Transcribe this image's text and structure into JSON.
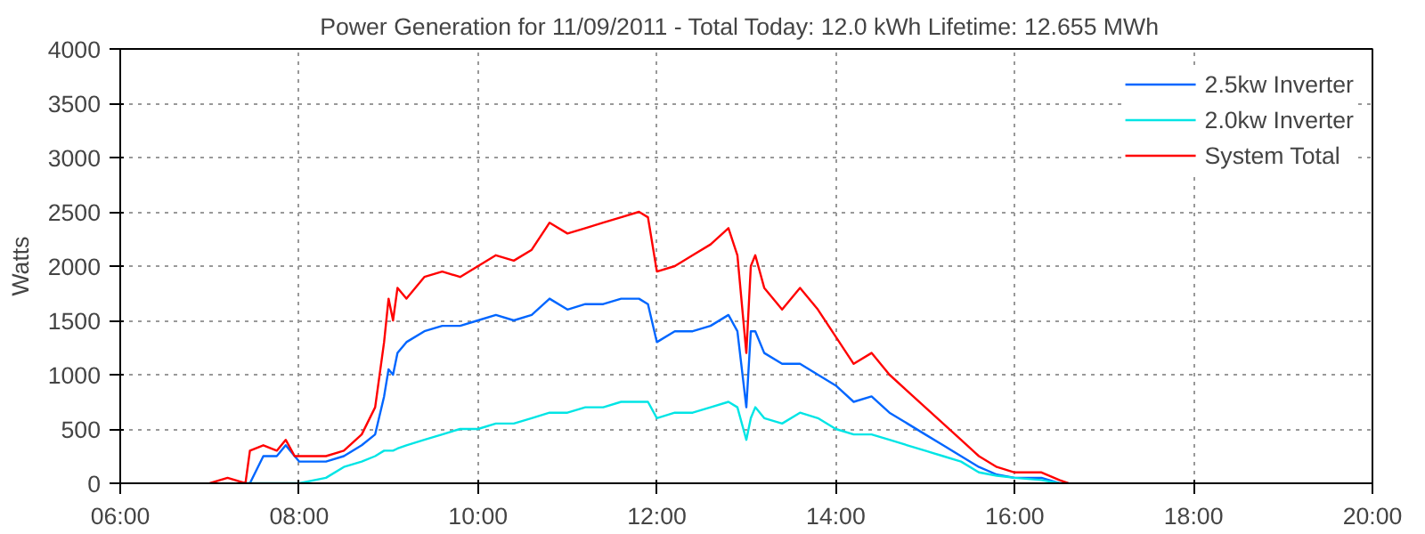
{
  "chart_data": {
    "type": "line",
    "title": "Power Generation for 11/09/2011 - Total Today: 12.0 kWh   Lifetime: 12.655 MWh",
    "ylabel": "Watts",
    "x": [
      7.0,
      7.2,
      7.4,
      7.45,
      7.6,
      7.75,
      7.85,
      7.95,
      8.0,
      8.3,
      8.5,
      8.7,
      8.85,
      8.95,
      9.0,
      9.05,
      9.1,
      9.2,
      9.4,
      9.6,
      9.8,
      10.0,
      10.2,
      10.4,
      10.6,
      10.8,
      11.0,
      11.2,
      11.4,
      11.6,
      11.8,
      11.9,
      12.0,
      12.2,
      12.4,
      12.6,
      12.8,
      12.9,
      13.0,
      13.05,
      13.1,
      13.2,
      13.4,
      13.6,
      13.8,
      14.0,
      14.2,
      14.4,
      14.6,
      14.8,
      15.0,
      15.2,
      15.4,
      15.6,
      15.8,
      16.0,
      16.3,
      16.5,
      16.6
    ],
    "series": [
      {
        "name": "2.5kw Inverter",
        "color": "#0066ff",
        "values": [
          null,
          null,
          0,
          0,
          250,
          250,
          350,
          250,
          200,
          200,
          250,
          350,
          450,
          800,
          1050,
          1000,
          1200,
          1300,
          1400,
          1450,
          1450,
          1500,
          1550,
          1500,
          1550,
          1700,
          1600,
          1650,
          1650,
          1700,
          1700,
          1650,
          1300,
          1400,
          1400,
          1450,
          1550,
          1400,
          700,
          1400,
          1400,
          1200,
          1100,
          1100,
          1000,
          900,
          750,
          800,
          650,
          550,
          450,
          350,
          250,
          150,
          80,
          50,
          50,
          0,
          0
        ]
      },
      {
        "name": "2.0kw Inverter",
        "color": "#00e5e5",
        "values": [
          null,
          null,
          0,
          0,
          0,
          0,
          0,
          0,
          0,
          50,
          150,
          200,
          250,
          300,
          300,
          300,
          320,
          350,
          400,
          450,
          500,
          500,
          550,
          550,
          600,
          650,
          650,
          700,
          700,
          750,
          750,
          750,
          600,
          650,
          650,
          700,
          750,
          700,
          400,
          600,
          700,
          600,
          550,
          650,
          600,
          500,
          450,
          450,
          400,
          350,
          300,
          250,
          200,
          100,
          70,
          50,
          30,
          0,
          0
        ]
      },
      {
        "name": "System Total",
        "color": "#ff0000",
        "values": [
          0,
          50,
          0,
          300,
          350,
          300,
          400,
          250,
          250,
          250,
          300,
          450,
          700,
          1300,
          1700,
          1500,
          1800,
          1700,
          1900,
          1950,
          1900,
          2000,
          2100,
          2050,
          2150,
          2400,
          2300,
          2350,
          2400,
          2450,
          2500,
          2450,
          1950,
          2000,
          2100,
          2200,
          2350,
          2100,
          1200,
          2000,
          2100,
          1800,
          1600,
          1800,
          1600,
          1350,
          1100,
          1200,
          1000,
          850,
          700,
          550,
          400,
          250,
          150,
          100,
          100,
          30,
          0
        ]
      }
    ],
    "xlim": [
      6,
      20
    ],
    "xticks": [
      {
        "value": 6,
        "label": "06:00"
      },
      {
        "value": 8,
        "label": "08:00"
      },
      {
        "value": 10,
        "label": "10:00"
      },
      {
        "value": 12,
        "label": "12:00"
      },
      {
        "value": 14,
        "label": "14:00"
      },
      {
        "value": 16,
        "label": "16:00"
      },
      {
        "value": 18,
        "label": "18:00"
      },
      {
        "value": 20,
        "label": "20:00"
      }
    ],
    "ylim": [
      0,
      4000
    ],
    "yticks": [
      0,
      500,
      1000,
      1500,
      2000,
      2500,
      3000,
      3500,
      4000
    ],
    "grid": true,
    "legend": "top right",
    "line_style": "solid"
  }
}
